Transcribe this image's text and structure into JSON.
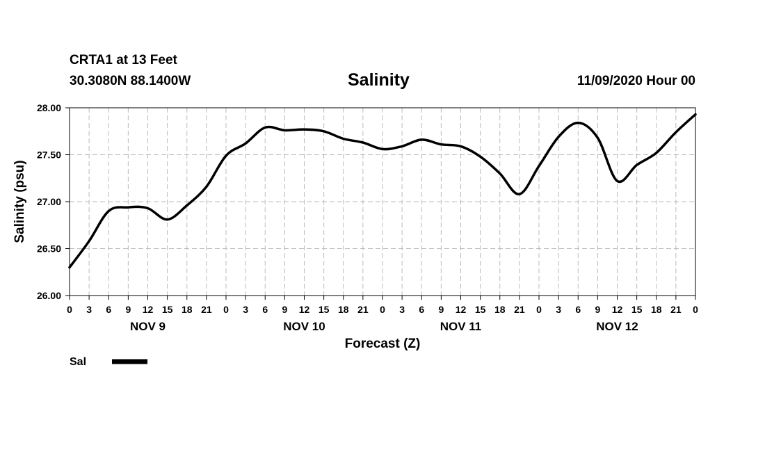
{
  "header": {
    "station": "CRTA1 at 13 Feet",
    "coords": "30.3080N 88.1400W",
    "title": "Salinity",
    "issued": "11/09/2020 Hour 00"
  },
  "chart_data": {
    "type": "line",
    "title": "Salinity",
    "xlabel": "Forecast (Z)",
    "ylabel": "Salinity (psu)",
    "ylim": [
      26.0,
      28.0
    ],
    "yticks": [
      "26.00",
      "26.50",
      "27.00",
      "27.50",
      "28.00"
    ],
    "xlim": [
      0,
      96
    ],
    "xtick_step_hours": 3,
    "xtick_labels": [
      "0",
      "3",
      "6",
      "9",
      "12",
      "15",
      "18",
      "21",
      "0",
      "3",
      "6",
      "9",
      "12",
      "15",
      "18",
      "21",
      "0",
      "3",
      "6",
      "9",
      "12",
      "15",
      "18",
      "21",
      "0",
      "3",
      "6",
      "9",
      "12",
      "15",
      "18",
      "21",
      "0"
    ],
    "day_labels": [
      {
        "label": "NOV 9",
        "hour": 12
      },
      {
        "label": "NOV 10",
        "hour": 36
      },
      {
        "label": "NOV 11",
        "hour": 60
      },
      {
        "label": "NOV 12",
        "hour": 84
      }
    ],
    "grid": true,
    "legend_position": "bottom-left",
    "series": [
      {
        "name": "Sal",
        "color": "#000000",
        "x": [
          0,
          3,
          6,
          9,
          12,
          15,
          18,
          21,
          24,
          27,
          30,
          33,
          36,
          39,
          42,
          45,
          48,
          51,
          54,
          57,
          60,
          63,
          66,
          69,
          72,
          75,
          78,
          81,
          84,
          87,
          90,
          93,
          96
        ],
        "values": [
          26.3,
          26.58,
          26.9,
          26.94,
          26.93,
          26.81,
          26.96,
          27.16,
          27.49,
          27.62,
          27.79,
          27.76,
          27.77,
          27.75,
          27.67,
          27.63,
          27.56,
          27.59,
          27.66,
          27.61,
          27.59,
          27.48,
          27.3,
          27.08,
          27.38,
          27.69,
          27.84,
          27.68,
          27.22,
          27.39,
          27.52,
          27.74,
          27.93
        ]
      }
    ]
  }
}
